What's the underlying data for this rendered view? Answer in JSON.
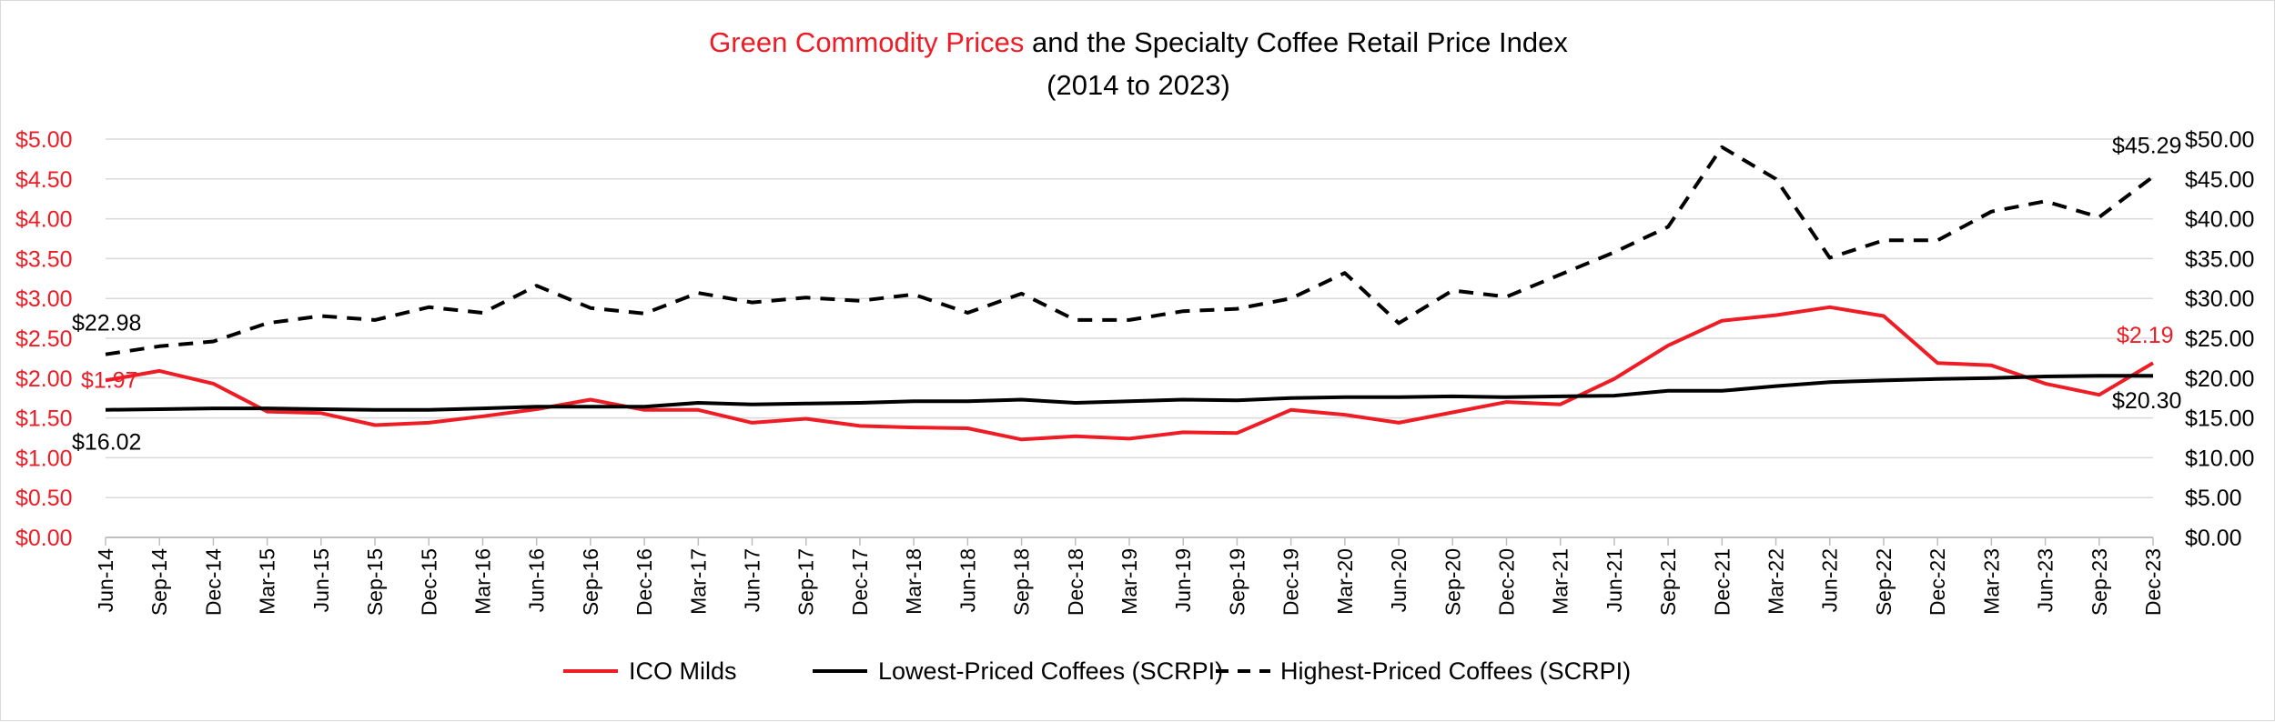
{
  "chart_data": {
    "type": "line",
    "title": {
      "part_red": "Green Commodity Prices",
      "part_black": " and the Specialty Coffee Retail Price Index",
      "line2": "(2014 to 2023)"
    },
    "colors": {
      "red": "#ee1c25",
      "black": "#000000",
      "grid": "#d9d9d9",
      "axis": "#bfbfbf"
    },
    "categories": [
      "Jun-14",
      "Sep-14",
      "Dec-14",
      "Mar-15",
      "Jun-15",
      "Sep-15",
      "Dec-15",
      "Mar-16",
      "Jun-16",
      "Sep-16",
      "Dec-16",
      "Mar-17",
      "Jun-17",
      "Sep-17",
      "Dec-17",
      "Mar-18",
      "Jun-18",
      "Sep-18",
      "Dec-18",
      "Mar-19",
      "Jun-19",
      "Sep-19",
      "Dec-19",
      "Mar-20",
      "Jun-20",
      "Sep-20",
      "Dec-20",
      "Mar-21",
      "Jun-21",
      "Sep-21",
      "Dec-21",
      "Mar-22",
      "Jun-22",
      "Sep-22",
      "Dec-22",
      "Mar-23",
      "Jun-23",
      "Sep-23",
      "Dec-23"
    ],
    "left_axis": {
      "range": [
        0,
        5
      ],
      "ticks": [
        0,
        0.5,
        1,
        1.5,
        2,
        2.5,
        3,
        3.5,
        4,
        4.5,
        5
      ],
      "tick_labels": [
        "$0.00",
        "$0.50",
        "$1.00",
        "$1.50",
        "$2.00",
        "$2.50",
        "$3.00",
        "$3.50",
        "$4.00",
        "$4.50",
        "$5.00"
      ]
    },
    "right_axis": {
      "range": [
        0,
        50
      ],
      "ticks": [
        0,
        5,
        10,
        15,
        20,
        25,
        30,
        35,
        40,
        45,
        50
      ],
      "tick_labels": [
        "$0.00",
        "$5.00",
        "$10.00",
        "$15.00",
        "$20.00",
        "$25.00",
        "$30.00",
        "$35.00",
        "$40.00",
        "$45.00",
        "$50.00"
      ]
    },
    "grid": true,
    "legend_position": "bottom",
    "series": [
      {
        "name": "ICO Milds",
        "axis": "left",
        "style": "solid",
        "color": "#ee1c25",
        "values": [
          1.97,
          2.09,
          1.93,
          1.58,
          1.56,
          1.41,
          1.44,
          1.52,
          1.61,
          1.73,
          1.6,
          1.6,
          1.44,
          1.49,
          1.4,
          1.38,
          1.37,
          1.23,
          1.27,
          1.24,
          1.32,
          1.31,
          1.6,
          1.54,
          1.44,
          1.57,
          1.7,
          1.67,
          1.99,
          2.41,
          2.72,
          2.79,
          2.89,
          2.78,
          2.19,
          2.16,
          1.93,
          1.79,
          2.19
        ],
        "start_label": "$1.97",
        "end_label": "$2.19"
      },
      {
        "name": "Lowest-Priced Coffees (SCRPI)",
        "axis": "right",
        "style": "solid",
        "color": "#000000",
        "values": [
          16.02,
          16.1,
          16.2,
          16.2,
          16.1,
          16.0,
          16.0,
          16.2,
          16.4,
          16.4,
          16.4,
          16.9,
          16.7,
          16.8,
          16.9,
          17.1,
          17.1,
          17.3,
          16.9,
          17.1,
          17.3,
          17.2,
          17.5,
          17.6,
          17.6,
          17.7,
          17.6,
          17.7,
          17.8,
          18.4,
          18.4,
          19.0,
          19.5,
          19.7,
          19.9,
          20.0,
          20.2,
          20.3,
          20.3
        ],
        "start_label": "$16.02",
        "end_label": "$20.30"
      },
      {
        "name": "Highest-Priced Coffees (SCRPI)",
        "axis": "right",
        "style": "dashed",
        "color": "#000000",
        "values": [
          22.98,
          24.0,
          24.6,
          26.9,
          27.8,
          27.3,
          28.9,
          28.2,
          31.6,
          28.8,
          28.1,
          30.7,
          29.5,
          30.1,
          29.7,
          30.5,
          28.2,
          30.6,
          27.3,
          27.3,
          28.4,
          28.7,
          30.0,
          33.2,
          26.9,
          31.0,
          30.2,
          33.0,
          35.8,
          39.0,
          49.0,
          45.0,
          35.1,
          37.3,
          37.3,
          40.9,
          42.2,
          40.2,
          45.29
        ],
        "start_label": "$22.98",
        "end_label": "$45.29"
      }
    ]
  }
}
